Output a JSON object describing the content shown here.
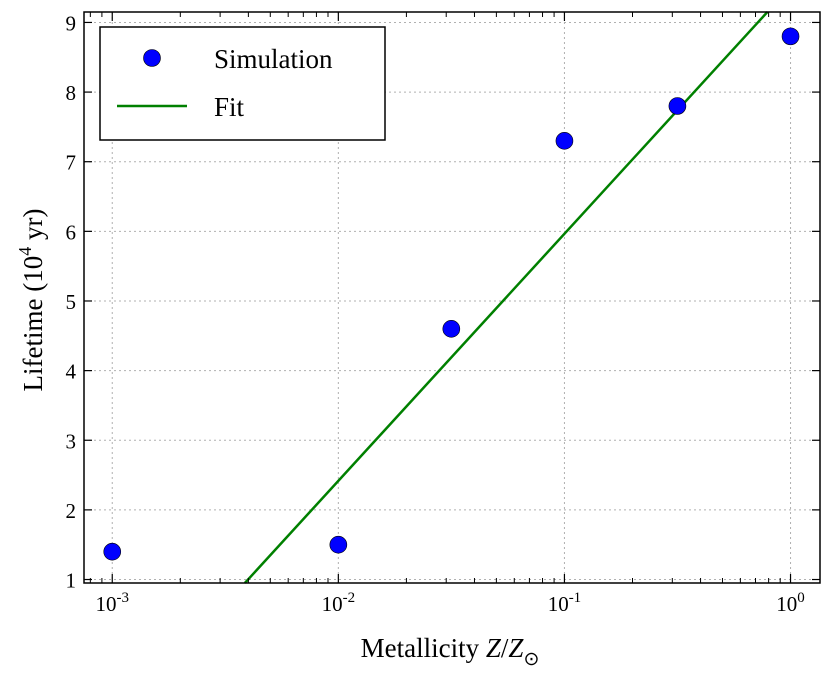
{
  "chart_data": {
    "type": "scatter",
    "xscale": "log",
    "title": "",
    "xlabel": "Metallicity Z/Z",
    "xlabel_parts": {
      "text": "Metallicity ",
      "var": "Z",
      "slash": "/",
      "var2": "Z",
      "sub": "⊙"
    },
    "ylabel": "Lifetime  (10",
    "ylabel_parts": {
      "text": "Lifetime  (10",
      "sup": "4",
      "unit": " yr)"
    },
    "xlim": [
      0.00075,
      1.35
    ],
    "ylim": [
      0.95,
      9.15
    ],
    "grid": true,
    "legend_position": "top-left",
    "x_ticks": [
      {
        "value": 0.001,
        "base": "10",
        "exp": "-3"
      },
      {
        "value": 0.01,
        "base": "10",
        "exp": "-2"
      },
      {
        "value": 0.1,
        "base": "10",
        "exp": "-1"
      },
      {
        "value": 1,
        "base": "10",
        "exp": "0"
      }
    ],
    "y_ticks": [
      1,
      2,
      3,
      4,
      5,
      6,
      7,
      8,
      9
    ],
    "series": [
      {
        "name": "Simulation",
        "kind": "points",
        "color": "#0000ff",
        "x": [
          0.001,
          0.01,
          0.0316,
          0.1,
          0.316,
          1.0
        ],
        "y": [
          1.4,
          1.5,
          4.6,
          7.3,
          7.8,
          8.8
        ]
      },
      {
        "name": "Fit",
        "kind": "line",
        "color": "#008000",
        "x": [
          0.00386,
          0.79
        ],
        "y": [
          0.95,
          9.15
        ]
      }
    ]
  }
}
